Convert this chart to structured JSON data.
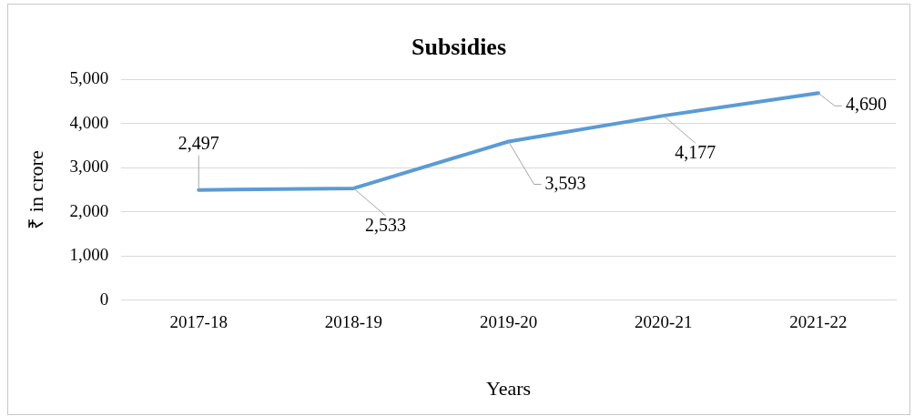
{
  "chart_data": {
    "type": "line",
    "title": "Subsidies",
    "xlabel": "Years",
    "ylabel": "₹ in crore",
    "categories": [
      "2017-18",
      "2018-19",
      "2019-20",
      "2020-21",
      "2021-22"
    ],
    "series": [
      {
        "color": "#5b9bd5",
        "values": [
          2497,
          2533,
          3593,
          4177,
          4690
        ]
      }
    ],
    "ylim": [
      0,
      5000
    ],
    "yticks": [
      {
        "value": 0,
        "label": "0"
      },
      {
        "value": 1000,
        "label": "1,000"
      },
      {
        "value": 2000,
        "label": "2,000"
      },
      {
        "value": 3000,
        "label": "3,000"
      },
      {
        "value": 4000,
        "label": "4,000"
      },
      {
        "value": 5000,
        "label": "5,000"
      }
    ],
    "grid": "y",
    "legend": false,
    "marker": "none",
    "line_style": "solid",
    "value_labels": [
      "2,497",
      "2,533",
      "3,593",
      "4,177",
      "4,690"
    ]
  }
}
